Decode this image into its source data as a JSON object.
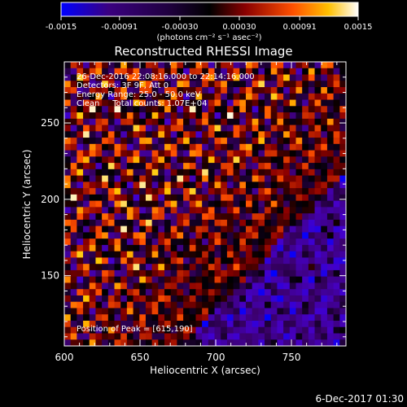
{
  "colorbar": {
    "tick_labels": [
      "-0.0015",
      "-0.00091",
      "-0.00030",
      "0.00030",
      "0.00091",
      "0.0015"
    ],
    "range": [
      -0.0015,
      0.0015
    ],
    "unit_label": "(photons cm⁻² s⁻¹ asec⁻²)"
  },
  "chart_data": {
    "type": "heatmap",
    "title": "Reconstructed RHESSI Image",
    "xlabel": "Heliocentric X (arcsec)",
    "ylabel": "Heliocentric Y (arcsec)",
    "xlim": [
      600,
      786
    ],
    "ylim": [
      104,
      290
    ],
    "xticks": [
      600,
      650,
      700,
      750
    ],
    "yticks": [
      150,
      200,
      250
    ],
    "colormap": "rhessi-hot (blue-purple-black-red-orange-yellow-white)",
    "grid_size": 45,
    "peak_position": [
      615,
      190
    ],
    "annotations": [
      "26-Dec-2016 22:08:16.000 to 22:14:16.000",
      "Detectors: 3F 9F, Att 0",
      "Energy Range: 25.0 - 50.0 keV",
      "Clean     Total counts: 1.07E+04",
      "Position of Peak = [615,190]"
    ]
  },
  "footer": {
    "timestamp": "6-Dec-2017 01:30"
  }
}
